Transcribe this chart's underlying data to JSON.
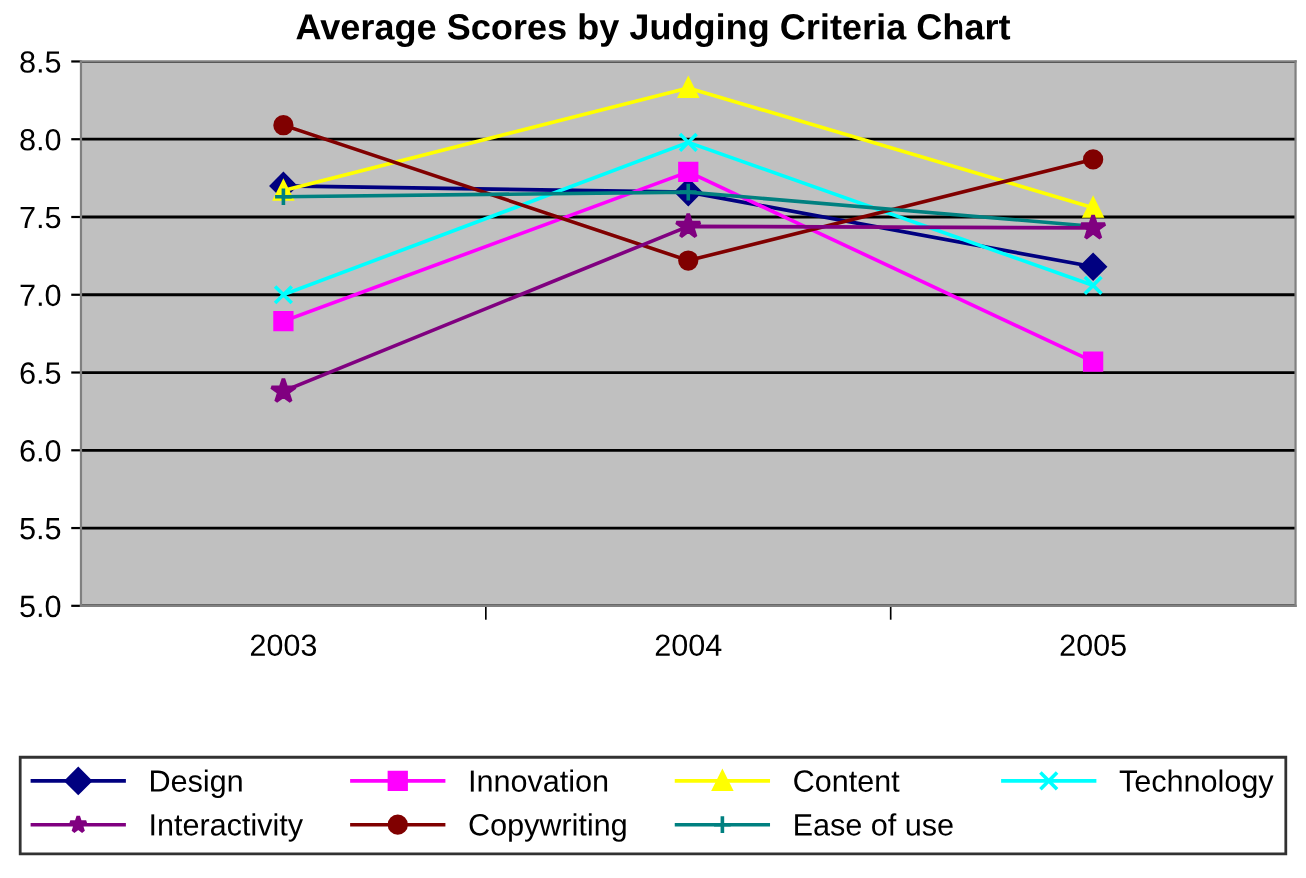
{
  "chart_data": {
    "type": "line",
    "title": "Average Scores by Judging Criteria Chart",
    "categories": [
      "2003",
      "2004",
      "2005"
    ],
    "series": [
      {
        "name": "Design",
        "color": "#000080",
        "marker": "diamond",
        "values": [
          7.7,
          7.66,
          7.18
        ]
      },
      {
        "name": "Innovation",
        "color": "#ff00ff",
        "marker": "square",
        "values": [
          6.83,
          7.79,
          6.57
        ]
      },
      {
        "name": "Content",
        "color": "#ffff00",
        "marker": "triangle",
        "values": [
          7.67,
          8.33,
          7.56
        ]
      },
      {
        "name": "Technology",
        "color": "#00ffff",
        "marker": "cross",
        "values": [
          7.0,
          7.98,
          7.06
        ]
      },
      {
        "name": "Interactivity",
        "color": "#800080",
        "marker": "star",
        "values": [
          6.38,
          7.44,
          7.43
        ]
      },
      {
        "name": "Copywriting",
        "color": "#800000",
        "marker": "circle",
        "values": [
          8.09,
          7.22,
          7.87
        ]
      },
      {
        "name": "Ease of use",
        "color": "#008080",
        "marker": "plus",
        "values": [
          7.63,
          7.66,
          7.44
        ]
      }
    ],
    "ylim": [
      5.0,
      8.5
    ],
    "yticks": [
      {
        "value": 5.0,
        "label": "5.0"
      },
      {
        "value": 5.5,
        "label": "5.5"
      },
      {
        "value": 6.0,
        "label": "6.0"
      },
      {
        "value": 6.5,
        "label": "6.5"
      },
      {
        "value": 7.0,
        "label": "7.0"
      },
      {
        "value": 7.5,
        "label": "7.5"
      },
      {
        "value": 8.0,
        "label": "8.0"
      },
      {
        "value": 8.5,
        "label": "8.5"
      }
    ],
    "grid": "y",
    "legend": "bottom",
    "line_style": "solid"
  }
}
